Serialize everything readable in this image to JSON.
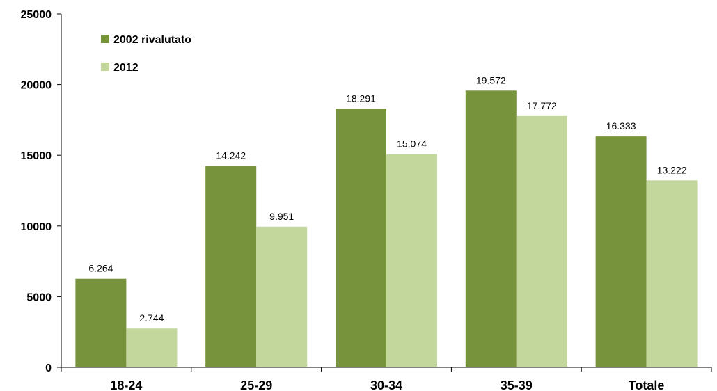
{
  "chart_data": {
    "type": "bar",
    "categories": [
      "18-24",
      "25-29",
      "30-34",
      "35-39",
      "Totale"
    ],
    "series": [
      {
        "name": "2002 rivalutato",
        "color": "#77933c",
        "values": [
          6264,
          14242,
          18291,
          19572,
          16333
        ],
        "labels": [
          "6.264",
          "14.242",
          "18.291",
          "19.572",
          "16.333"
        ]
      },
      {
        "name": "2012",
        "color": "#c3d69b",
        "values": [
          2744,
          9951,
          15074,
          17772,
          13222
        ],
        "labels": [
          "2.744",
          "9.951",
          "15.074",
          "17.772",
          "13.222"
        ]
      }
    ],
    "yticks": [
      0,
      5000,
      10000,
      15000,
      20000,
      25000
    ],
    "ylim": [
      0,
      25000
    ],
    "grid": false,
    "legend_position": "top-left"
  }
}
